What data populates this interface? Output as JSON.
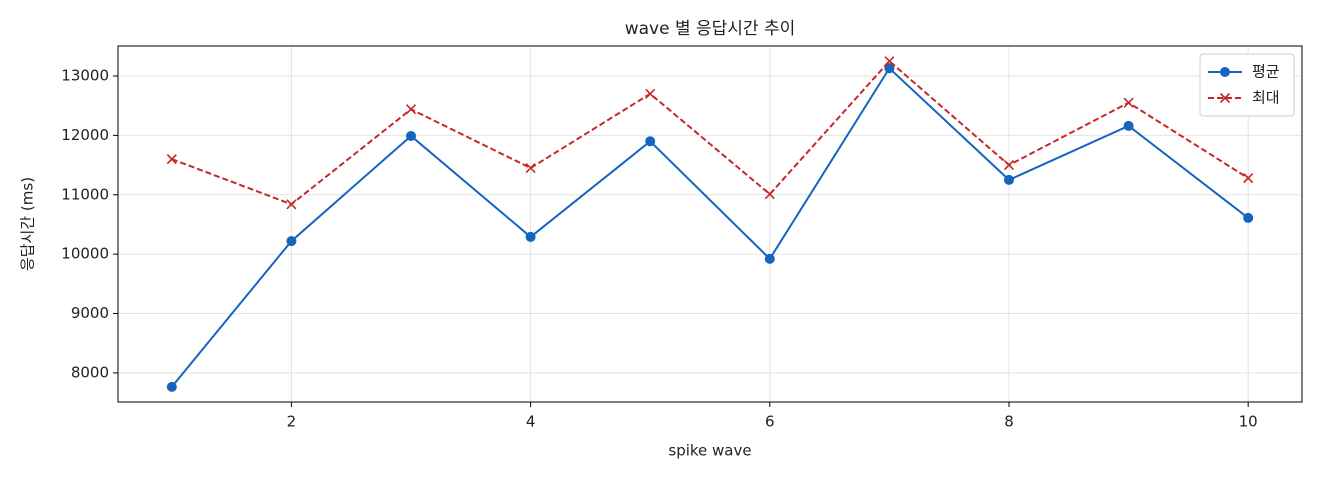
{
  "chart_data": {
    "type": "line",
    "title": "wave 별 응답시간 추이",
    "xlabel": "spike wave",
    "ylabel": "응답시간 (ms)",
    "x": [
      1,
      2,
      3,
      4,
      5,
      6,
      7,
      8,
      9,
      10
    ],
    "series": [
      {
        "name": "평균",
        "color": "#1565c0",
        "marker": "circle",
        "dash": "solid",
        "values": [
          7765,
          10220,
          11990,
          10290,
          11900,
          9920,
          13130,
          11250,
          12160,
          10610
        ]
      },
      {
        "name": "최대",
        "color": "#c62828",
        "marker": "x",
        "dash": "dashed",
        "values": [
          11600,
          10840,
          12440,
          11450,
          12700,
          11010,
          13250,
          11500,
          12550,
          11280
        ]
      }
    ],
    "xlim": [
      0.55,
      10.45
    ],
    "xticks": [
      2,
      4,
      6,
      8,
      10
    ],
    "ylim": [
      7510,
      13505
    ],
    "yticks": [
      8000,
      9000,
      10000,
      11000,
      12000,
      13000
    ],
    "grid": true,
    "legend": "upper right"
  }
}
